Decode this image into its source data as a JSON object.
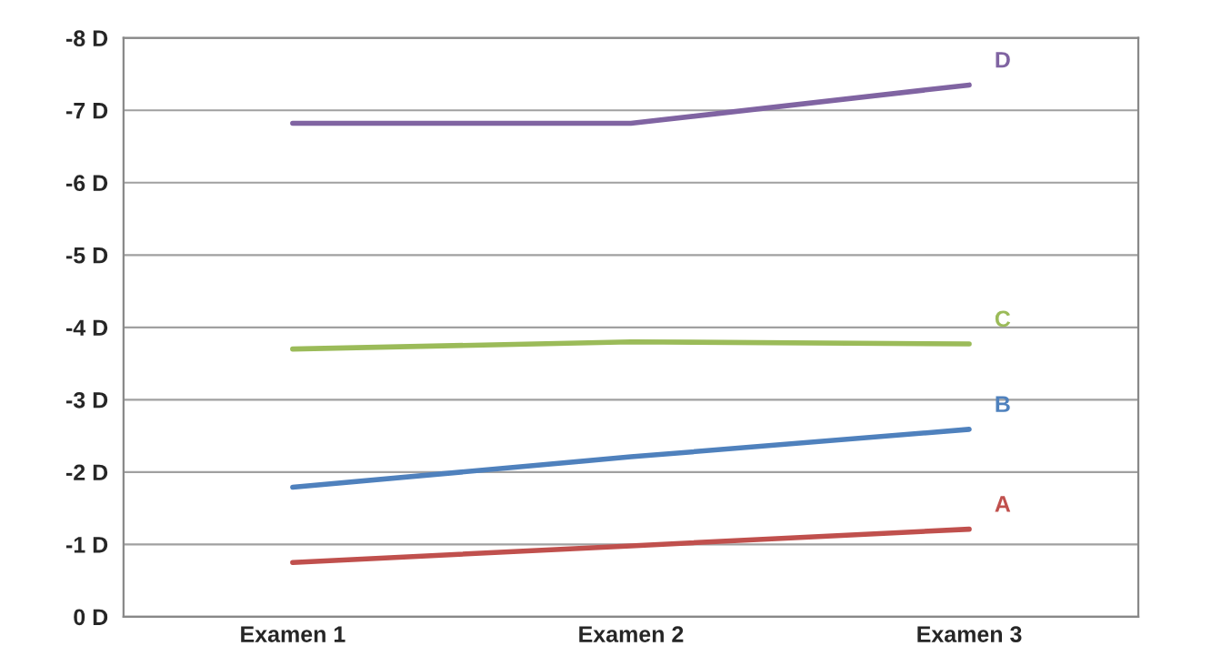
{
  "chart_data": {
    "type": "line",
    "categories": [
      "Examen 1",
      "Examen 2",
      "Examen 3"
    ],
    "series": [
      {
        "name": "D",
        "color": "#8064a2",
        "values": [
          -6.82,
          -6.82,
          -7.35
        ]
      },
      {
        "name": "C",
        "color": "#9bbb59",
        "values": [
          -3.7,
          -3.8,
          -3.77
        ]
      },
      {
        "name": "B",
        "color": "#4f81bd",
        "values": [
          -1.79,
          -2.21,
          -2.59
        ]
      },
      {
        "name": "A",
        "color": "#c0504d",
        "values": [
          -0.75,
          -0.98,
          -1.21
        ]
      }
    ],
    "ylim": [
      0,
      -8
    ],
    "yticks": [
      {
        "value": 0,
        "label": "0 D"
      },
      {
        "value": -1,
        "label": "-1 D"
      },
      {
        "value": -2,
        "label": "-2 D"
      },
      {
        "value": -3,
        "label": "-3 D"
      },
      {
        "value": -4,
        "label": "-4 D"
      },
      {
        "value": -5,
        "label": "-5 D"
      },
      {
        "value": -6,
        "label": "-6 D"
      },
      {
        "value": -7,
        "label": "-7 D"
      },
      {
        "value": -8,
        "label": "-8 D"
      }
    ],
    "grid": "y",
    "legend": false,
    "marker": "none",
    "line_style": "solid"
  }
}
